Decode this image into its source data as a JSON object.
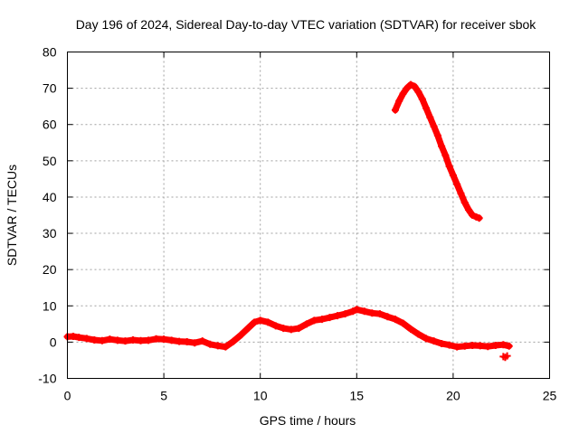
{
  "chart_data": {
    "type": "scatter",
    "title": "Day 196 of 2024, Sidereal Day-to-day VTEC variation (SDTVAR) for receiver sbok",
    "xlabel": "GPS time / hours",
    "ylabel": "SDTVAR / TECUs",
    "xlim": [
      0,
      25
    ],
    "ylim": [
      -10,
      80
    ],
    "xticks": [
      0,
      5,
      10,
      15,
      20,
      25
    ],
    "yticks": [
      -10,
      0,
      10,
      20,
      30,
      40,
      50,
      60,
      70,
      80
    ],
    "grid": true,
    "marker_color": "#ff0000",
    "series": [
      {
        "name": "low",
        "x": [
          0.0,
          0.3,
          0.6,
          1.0,
          1.4,
          1.8,
          2.2,
          2.6,
          3.0,
          3.4,
          3.8,
          4.2,
          4.6,
          5.0,
          5.4,
          5.8,
          6.2,
          6.6,
          7.0,
          7.4,
          7.8,
          8.2,
          8.6,
          9.0,
          9.4,
          9.7,
          10.0,
          10.4,
          10.8,
          11.2,
          11.6,
          12.0,
          12.4,
          12.8,
          13.2,
          13.6,
          14.0,
          14.4,
          14.8,
          15.0,
          15.4,
          15.8,
          16.2,
          16.6,
          17.0,
          17.4,
          17.8,
          18.2,
          18.6,
          19.0,
          19.4,
          19.8,
          20.2,
          20.6,
          21.0,
          21.4,
          21.8,
          22.2,
          22.6,
          22.9
        ],
        "y": [
          1.5,
          1.6,
          1.3,
          1.0,
          0.6,
          0.4,
          0.8,
          0.5,
          0.3,
          0.6,
          0.4,
          0.5,
          0.9,
          0.8,
          0.5,
          0.2,
          0.1,
          -0.2,
          0.3,
          -0.6,
          -1.0,
          -1.3,
          0.2,
          2.0,
          4.0,
          5.5,
          6.0,
          5.5,
          4.5,
          3.8,
          3.5,
          3.8,
          5.0,
          6.0,
          6.3,
          6.8,
          7.3,
          7.8,
          8.5,
          9.0,
          8.5,
          8.0,
          7.8,
          7.0,
          6.3,
          5.2,
          3.6,
          2.2,
          1.0,
          0.3,
          -0.4,
          -0.8,
          -1.3,
          -1.1,
          -0.9,
          -1.0,
          -1.2,
          -0.9,
          -0.7,
          -1.1
        ]
      },
      {
        "name": "outlier",
        "x": [
          22.6,
          22.7,
          22.8
        ],
        "y": [
          -4.0,
          -4.2,
          -3.8
        ]
      },
      {
        "name": "high",
        "x": [
          17.0,
          17.2,
          17.4,
          17.6,
          17.8,
          18.0,
          18.2,
          18.4,
          18.6,
          18.8,
          19.0,
          19.2,
          19.4,
          19.6,
          19.8,
          20.0,
          20.2,
          20.4,
          20.6,
          20.8,
          21.0,
          21.2,
          21.35
        ],
        "y": [
          64.0,
          66.5,
          68.5,
          70.0,
          71.0,
          70.5,
          69.0,
          67.0,
          64.5,
          62.0,
          59.5,
          57.0,
          54.0,
          51.5,
          48.5,
          46.0,
          43.5,
          41.0,
          38.5,
          36.5,
          35.0,
          34.5,
          34.2
        ]
      }
    ]
  }
}
